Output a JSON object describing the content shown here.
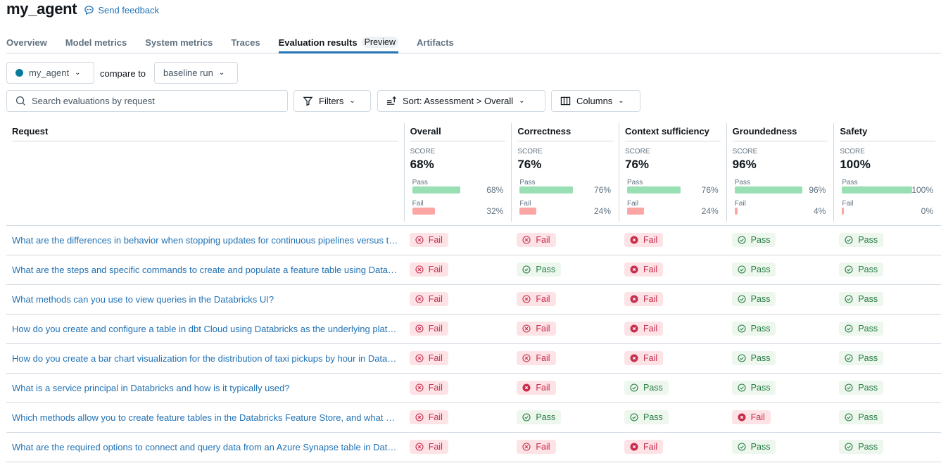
{
  "header": {
    "title": "my_agent",
    "feedback": "Send feedback"
  },
  "tabs": [
    {
      "label": "Overview"
    },
    {
      "label": "Model metrics"
    },
    {
      "label": "System metrics"
    },
    {
      "label": "Traces"
    },
    {
      "label": "Evaluation results",
      "badge": "Preview",
      "active": true
    },
    {
      "label": "Artifacts"
    }
  ],
  "toolbar": {
    "run": "my_agent",
    "run_color": "#077a9d",
    "compare_label": "compare to",
    "compare_run": "baseline run",
    "search_placeholder": "Search evaluations by request",
    "filters": "Filters",
    "sort": "Sort: Assessment > Overall",
    "columns": "Columns"
  },
  "table": {
    "request_header": "Request",
    "score_label": "SCORE",
    "pass_label": "Pass",
    "fail_label": "Fail",
    "metrics": [
      {
        "name": "Overall",
        "score": "68%",
        "pass": 68,
        "fail": 32
      },
      {
        "name": "Correctness",
        "score": "76%",
        "pass": 76,
        "fail": 24
      },
      {
        "name": "Context sufficiency",
        "score": "76%",
        "pass": 76,
        "fail": 24
      },
      {
        "name": "Groundedness",
        "score": "96%",
        "pass": 96,
        "fail": 4
      },
      {
        "name": "Safety",
        "score": "100%",
        "pass": 100,
        "fail": 0
      }
    ],
    "rows": [
      {
        "request": "What are the differences in behavior when stopping updates for continuous pipelines versus triggered pipelines?",
        "results": [
          "Fail",
          "Fail",
          "Fail*",
          "Pass",
          "Pass"
        ]
      },
      {
        "request": "What are the steps and specific commands to create and populate a feature table using Databricks?",
        "results": [
          "Fail",
          "Pass",
          "Fail*",
          "Pass",
          "Pass"
        ]
      },
      {
        "request": "What methods can you use to view queries in the Databricks UI?",
        "results": [
          "Fail",
          "Fail",
          "Fail*",
          "Pass",
          "Pass"
        ]
      },
      {
        "request": "How do you create and configure a table in dbt Cloud using Databricks as the underlying platform?",
        "results": [
          "Fail",
          "Fail",
          "Fail*",
          "Pass",
          "Pass"
        ]
      },
      {
        "request": "How do you create a bar chart visualization for the distribution of taxi pickups by hour in Databricks?",
        "results": [
          "Fail",
          "Fail",
          "Fail*",
          "Pass",
          "Pass"
        ]
      },
      {
        "request": "What is a service principal in Databricks and how is it typically used?",
        "results": [
          "Fail",
          "Fail*",
          "Pass",
          "Pass",
          "Pass"
        ]
      },
      {
        "request": "Which methods allow you to create feature tables in the Databricks Feature Store, and what are they?",
        "results": [
          "Fail",
          "Pass",
          "Pass",
          "Fail*",
          "Pass"
        ]
      },
      {
        "request": "What are the required options to connect and query data from an Azure Synapse table in Databricks?",
        "results": [
          "Fail",
          "Fail",
          "Fail*",
          "Pass",
          "Pass"
        ]
      }
    ],
    "colors": {
      "pass_bar": "#99dfb4",
      "fail_bar": "#fca5a5"
    }
  }
}
